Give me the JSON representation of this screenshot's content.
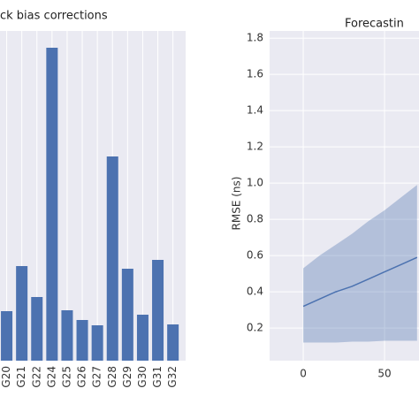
{
  "chart_data": [
    {
      "type": "bar",
      "title": "ck bias corrections",
      "categories": [
        "G20",
        "G21",
        "G22",
        "G24",
        "G25",
        "G26",
        "G27",
        "G28",
        "G29",
        "G30",
        "G31",
        "G32"
      ],
      "values": [
        56,
        107,
        72,
        354,
        57,
        46,
        40,
        231,
        104,
        52,
        114,
        41
      ],
      "color": "#4c72b0",
      "ylim": [
        0,
        373
      ],
      "grid": true
    },
    {
      "type": "line",
      "title": "Forecastin",
      "ylabel": "RMSE (ns)",
      "x": [
        0,
        10,
        20,
        30,
        40,
        50,
        60,
        70
      ],
      "values": [
        0.32,
        0.36,
        0.4,
        0.43,
        0.47,
        0.51,
        0.55,
        0.59
      ],
      "lower": [
        0.12,
        0.12,
        0.12,
        0.125,
        0.125,
        0.13,
        0.13,
        0.13
      ],
      "upper": [
        0.53,
        0.6,
        0.66,
        0.72,
        0.79,
        0.85,
        0.92,
        0.99
      ],
      "color": "#4c72b0",
      "xlim": [
        -20.7,
        71.2
      ],
      "xticks": [
        0,
        50
      ],
      "ylim": [
        0.02,
        1.84
      ],
      "yticks": [
        0.2,
        0.4,
        0.6,
        0.8,
        {
          "value": 1,
          "label": "1.0"
        },
        1.2,
        1.4,
        1.6,
        1.8
      ],
      "grid": true
    }
  ]
}
